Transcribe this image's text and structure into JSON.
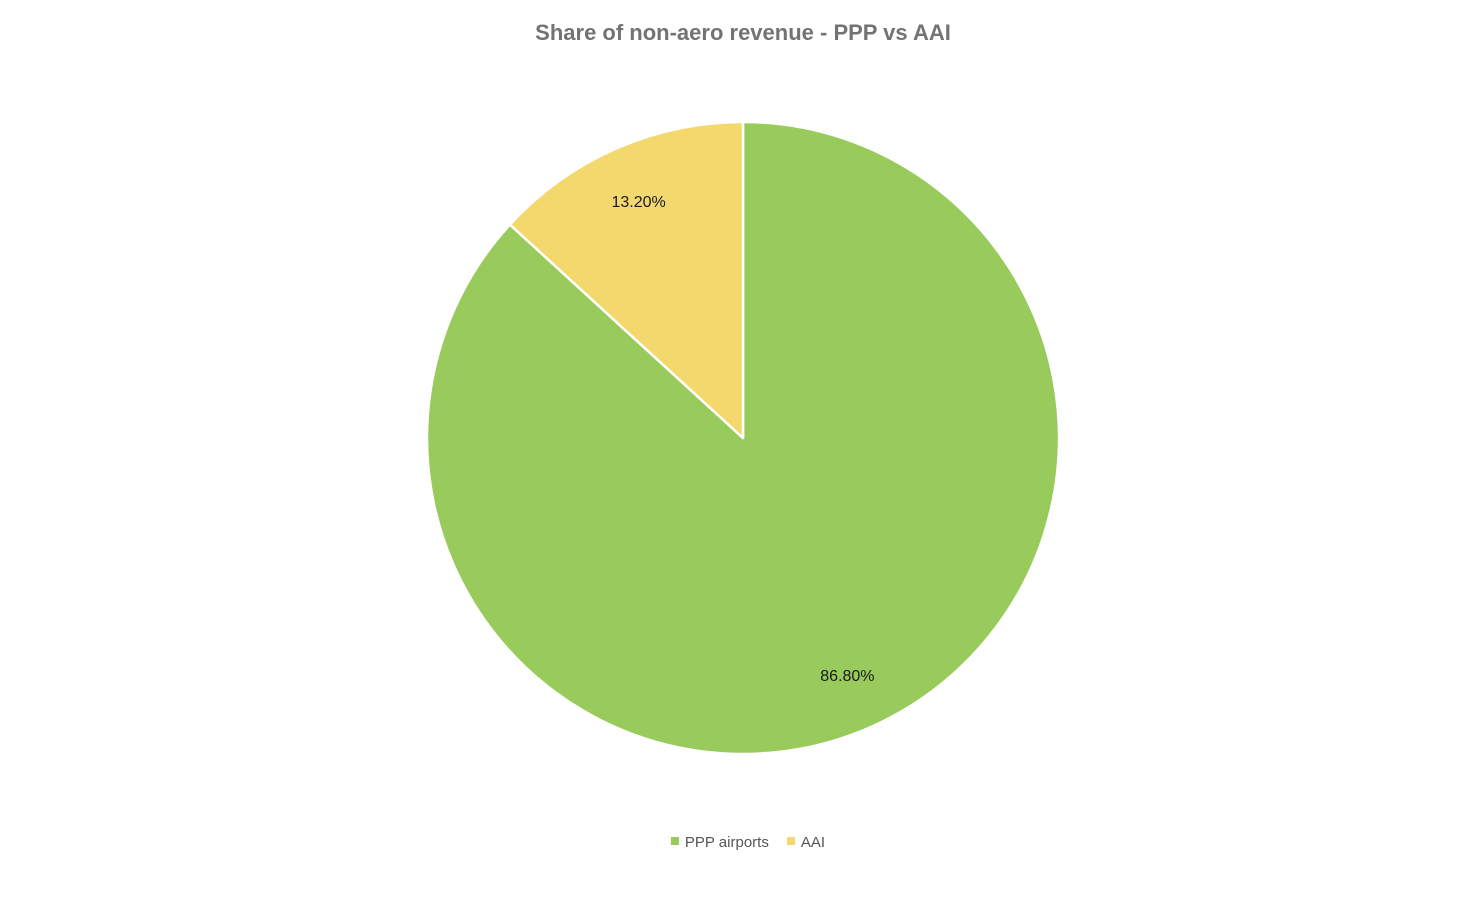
{
  "chart_data": {
    "type": "pie",
    "title": "Share of non-aero revenue - PPP vs AAI",
    "start_angle_deg": 0,
    "direction": "clockwise",
    "slices": [
      {
        "name": "PPP airports",
        "value": 86.8,
        "label": "86.80%",
        "color": "#98cb5b"
      },
      {
        "name": "AAI",
        "value": 13.2,
        "label": "13.20%",
        "color": "#f3d86e"
      }
    ],
    "legend": {
      "position": "bottom",
      "entries": [
        "PPP airports",
        "AAI"
      ]
    },
    "data_labels": true
  }
}
